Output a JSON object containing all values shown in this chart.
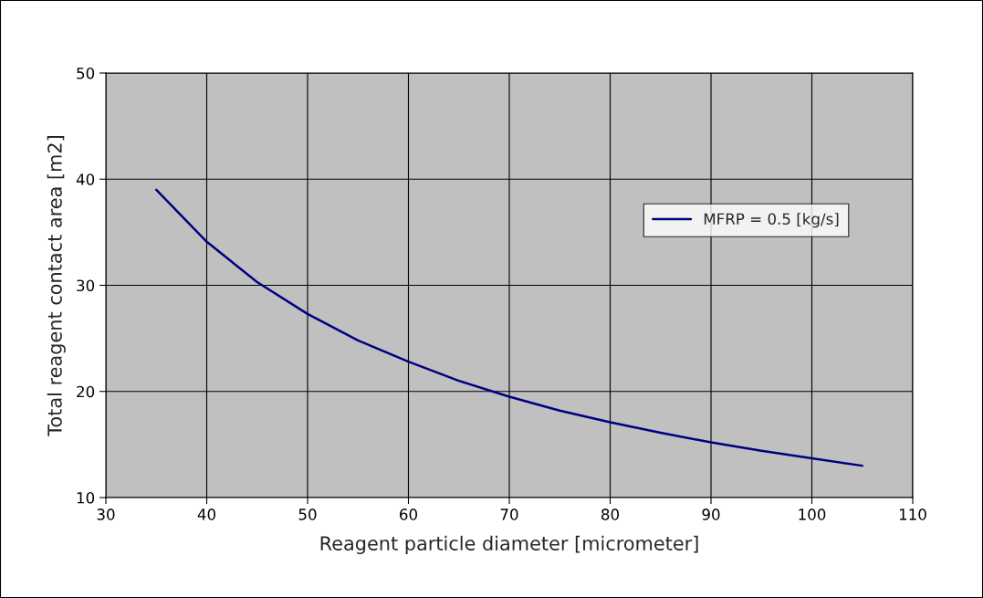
{
  "chart_data": {
    "type": "line",
    "xlabel": "Reagent particle diameter [micrometer]",
    "ylabel": "Total reagent contact area [m2]",
    "x": [
      35,
      40,
      45,
      50,
      55,
      60,
      65,
      70,
      75,
      80,
      85,
      90,
      95,
      100,
      105
    ],
    "series": [
      {
        "name": "MFRP = 0.5 [kg/s]",
        "color": "#000080",
        "values": [
          39.0,
          34.1,
          30.3,
          27.3,
          24.8,
          22.8,
          21.0,
          19.5,
          18.2,
          17.1,
          16.1,
          15.2,
          14.4,
          13.7,
          13.0
        ]
      }
    ],
    "xlim": [
      30,
      110
    ],
    "xticks": [
      30,
      40,
      50,
      60,
      70,
      80,
      90,
      100,
      110
    ],
    "ylim": [
      10,
      50
    ],
    "yticks": [
      10,
      20,
      30,
      40,
      50
    ],
    "grid": true,
    "legend": "upper right",
    "marker": "none",
    "line_style": "solid"
  }
}
